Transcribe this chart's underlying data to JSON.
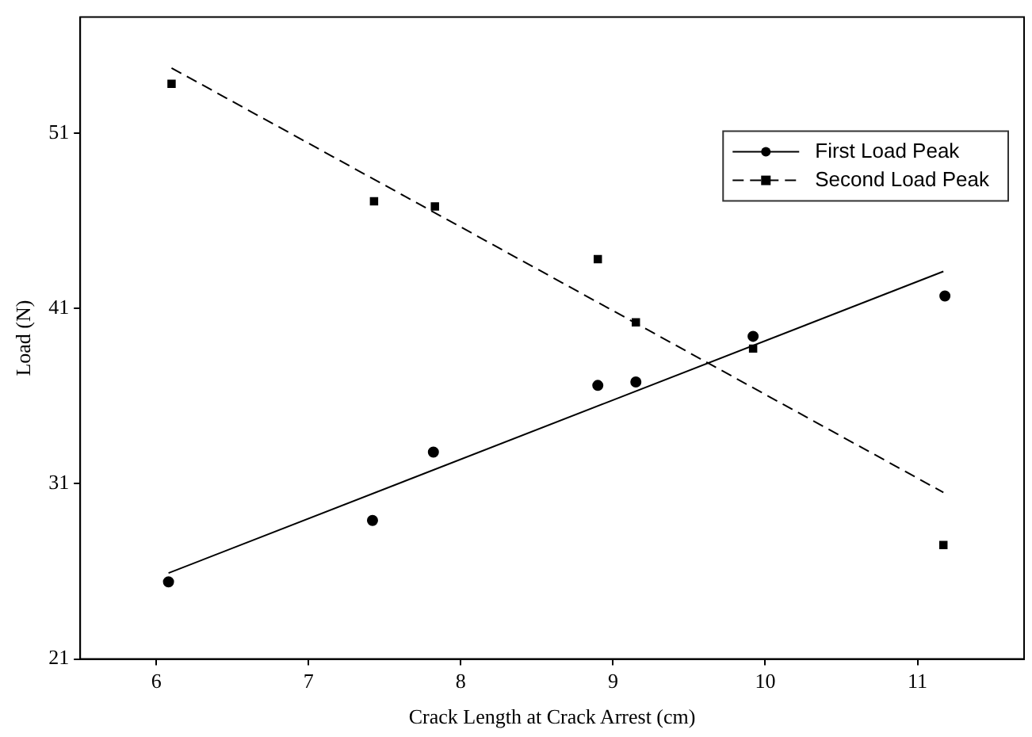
{
  "chart_data": {
    "type": "scatter",
    "xlabel": "Crack Length at Crack Arrest (cm)",
    "ylabel": "Load (N)",
    "xlim": [
      5.5,
      11.7
    ],
    "xticks": [
      6,
      7,
      8,
      9,
      10,
      11
    ],
    "ylim": [
      21,
      57.6
    ],
    "yticks": [
      21,
      31,
      41,
      51
    ],
    "grid": false,
    "legend": "top right",
    "series": [
      {
        "name": "First Load Peak",
        "type": "scatter",
        "marker": "circle",
        "color": "#000000",
        "x": [
          6.08,
          7.42,
          7.82,
          8.9,
          9.15,
          9.92,
          11.18
        ],
        "values": [
          25.4,
          28.9,
          32.8,
          36.6,
          36.8,
          39.4,
          41.7
        ]
      },
      {
        "name": "Second Load Peak",
        "type": "scatter",
        "marker": "square",
        "color": "#000000",
        "x": [
          6.1,
          7.43,
          7.83,
          8.9,
          9.15,
          9.92,
          11.17
        ],
        "values": [
          53.8,
          47.1,
          46.8,
          43.8,
          40.2,
          38.7,
          27.5
        ]
      },
      {
        "type": "line",
        "line_style": "solid",
        "marker": "none",
        "color": "#000000",
        "x": [
          6.08,
          11.17
        ],
        "values": [
          25.9,
          43.1
        ]
      },
      {
        "type": "line",
        "line_style": "dashed",
        "marker": "none",
        "color": "#000000",
        "x": [
          6.1,
          11.17
        ],
        "values": [
          54.7,
          30.5
        ]
      }
    ]
  }
}
